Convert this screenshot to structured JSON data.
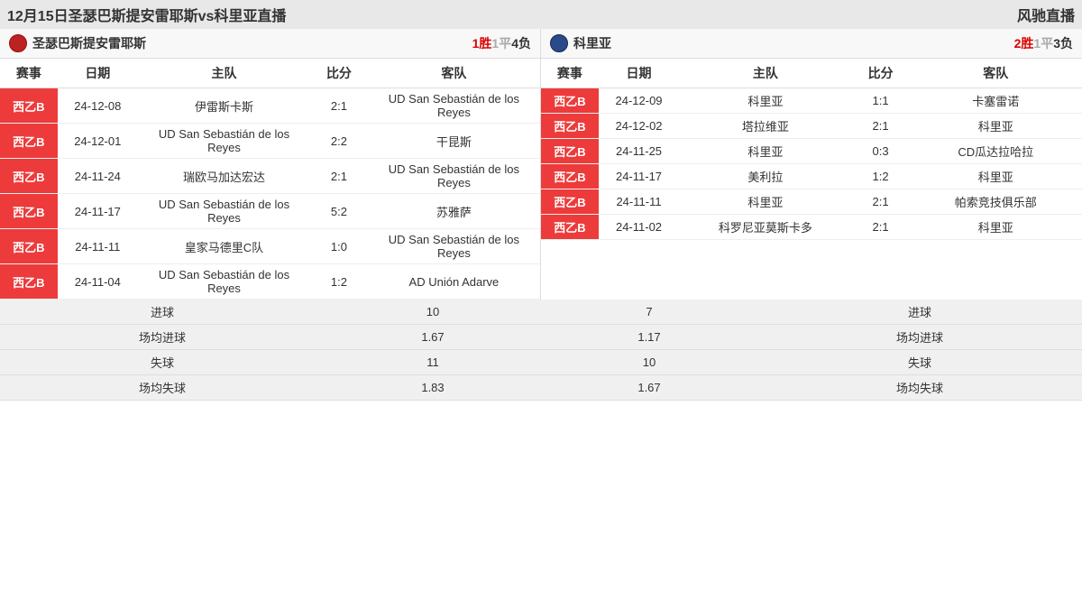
{
  "header": {
    "title": "12月15日圣瑟巴斯提安雷耶斯vs科里亚直播",
    "site": "风驰直播"
  },
  "columns": {
    "comp": "赛事",
    "date": "日期",
    "home": "主队",
    "score": "比分",
    "away": "客队"
  },
  "left": {
    "team_name": "圣瑟巴斯提安雷耶斯",
    "badge_color": "#b22",
    "record": {
      "win": "1胜",
      "draw": "1平",
      "lose": "4负"
    },
    "matches": [
      {
        "comp": "西乙B",
        "date": "24-12-08",
        "home": "伊雷斯卡斯",
        "score": "2:1",
        "away": "UD San Sebastián de los Reyes"
      },
      {
        "comp": "西乙B",
        "date": "24-12-01",
        "home": "UD San Sebastián de los Reyes",
        "score": "2:2",
        "away": "干昆斯"
      },
      {
        "comp": "西乙B",
        "date": "24-11-24",
        "home": "瑞欧马加达宏达",
        "score": "2:1",
        "away": "UD San Sebastián de los Reyes"
      },
      {
        "comp": "西乙B",
        "date": "24-11-17",
        "home": "UD San Sebastián de los Reyes",
        "score": "5:2",
        "away": "苏雅萨"
      },
      {
        "comp": "西乙B",
        "date": "24-11-11",
        "home": "皇家马德里C队",
        "score": "1:0",
        "away": "UD San Sebastián de los Reyes"
      },
      {
        "comp": "西乙B",
        "date": "24-11-04",
        "home": "UD San Sebastián de los Reyes",
        "score": "1:2",
        "away": "AD Unión Adarve"
      }
    ],
    "summary": [
      {
        "label": "进球",
        "value": "10"
      },
      {
        "label": "场均进球",
        "value": "1.67"
      },
      {
        "label": "失球",
        "value": "11"
      },
      {
        "label": "场均失球",
        "value": "1.83"
      }
    ]
  },
  "right": {
    "team_name": "科里亚",
    "badge_color": "#2a4a8a",
    "record": {
      "win": "2胜",
      "draw": "1平",
      "lose": "3负"
    },
    "matches": [
      {
        "comp": "西乙B",
        "date": "24-12-09",
        "home": "科里亚",
        "score": "1:1",
        "away": "卡塞雷诺"
      },
      {
        "comp": "西乙B",
        "date": "24-12-02",
        "home": "塔拉维亚",
        "score": "2:1",
        "away": "科里亚"
      },
      {
        "comp": "西乙B",
        "date": "24-11-25",
        "home": "科里亚",
        "score": "0:3",
        "away": "CD瓜达拉哈拉"
      },
      {
        "comp": "西乙B",
        "date": "24-11-17",
        "home": "美利拉",
        "score": "1:2",
        "away": "科里亚"
      },
      {
        "comp": "西乙B",
        "date": "24-11-11",
        "home": "科里亚",
        "score": "2:1",
        "away": "帕索竞技俱乐部"
      },
      {
        "comp": "西乙B",
        "date": "24-11-02",
        "home": "科罗尼亚莫斯卡多",
        "score": "2:1",
        "away": "科里亚"
      }
    ],
    "summary": [
      {
        "label": "进球",
        "value": "7"
      },
      {
        "label": "场均进球",
        "value": "1.17"
      },
      {
        "label": "失球",
        "value": "10"
      },
      {
        "label": "场均失球",
        "value": "1.67"
      }
    ]
  }
}
